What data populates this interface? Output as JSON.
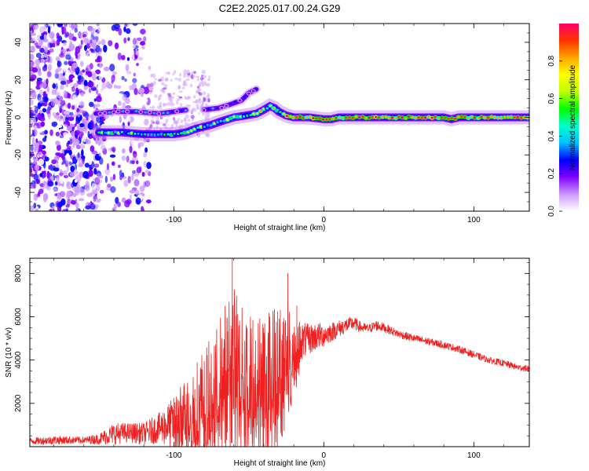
{
  "page": {
    "title": "C2E2.2025.017.00.24.G29"
  },
  "chart_data": [
    {
      "type": "heatmap",
      "title": "",
      "xlabel": "Height of straight line (km)",
      "ylabel": "Frequency (Hz)",
      "xlim": [
        -196,
        137
      ],
      "ylim": [
        -50,
        50
      ],
      "xticks": [
        -100,
        0,
        100
      ],
      "yticks": [
        -40,
        -20,
        0,
        20,
        40
      ],
      "colorbar": {
        "label": "Normalized spectral amplitude",
        "range": [
          0,
          1
        ],
        "ticks": [
          0.0,
          0.2,
          0.4,
          0.6,
          0.8
        ],
        "colors": [
          "#ffffff",
          "#cc99ff",
          "#7f00ff",
          "#0000ff",
          "#00bfff",
          "#00ffcc",
          "#00ff00",
          "#bfff00",
          "#ffff00",
          "#ffa500",
          "#ff3300",
          "#ff0066"
        ]
      },
      "ridges": [
        {
          "name": "",
          "x": [
            -152,
            -140,
            -125,
            -110,
            -100,
            -92
          ],
          "y": [
            2,
            3,
            3,
            2,
            3,
            4
          ],
          "amplitude": 0.35
        },
        {
          "name": "",
          "x": [
            -150,
            -135,
            -120,
            -110,
            -100,
            -92,
            -85,
            -75,
            -68,
            -60,
            -52,
            -45,
            -40,
            -36,
            -33,
            -30,
            -25,
            -20,
            -10,
            0,
            5,
            10,
            20,
            40,
            60,
            80,
            85,
            90,
            110,
            137
          ],
          "y": [
            -8,
            -8,
            -9,
            -9,
            -9,
            -8,
            -6,
            -4,
            -2,
            0,
            1,
            2,
            4,
            6,
            5,
            3,
            1,
            0,
            0,
            -1,
            -1,
            0,
            0,
            0,
            0,
            0,
            -1,
            0,
            0,
            0
          ],
          "amplitude": 0.75
        },
        {
          "name": "",
          "x": [
            -80,
            -70,
            -62,
            -55,
            -50,
            -45
          ],
          "y": [
            4,
            5,
            7,
            9,
            13,
            15
          ],
          "amplitude": 0.3
        }
      ]
    },
    {
      "type": "line",
      "title": "",
      "xlabel": "Height of straight line (km)",
      "ylabel": "SNR (10 * v/v)",
      "xlim": [
        -196,
        137
      ],
      "ylim": [
        0,
        8700
      ],
      "xticks": [
        -100,
        0,
        100
      ],
      "yticks": [
        2000,
        4000,
        6000,
        8000
      ],
      "color": "#ee2020",
      "series": [
        {
          "name": "",
          "x": [
            -196,
            -180,
            -160,
            -150,
            -140,
            -130,
            -120,
            -110,
            -100,
            -90,
            -80,
            -75,
            -70,
            -65,
            -60,
            -55,
            -50,
            -45,
            -40,
            -35,
            -30,
            -25,
            -20,
            -15,
            -10,
            -5,
            0,
            5,
            10,
            15,
            20,
            25,
            30,
            35,
            40,
            50,
            60,
            70,
            80,
            90,
            100,
            110,
            120,
            130,
            137
          ],
          "envelope": [
            250,
            300,
            300,
            350,
            600,
            650,
            600,
            850,
            1100,
            1800,
            2300,
            2600,
            3300,
            4000,
            4500,
            3700,
            3600,
            3600,
            3500,
            3600,
            3800,
            4300,
            4600,
            4900,
            4950,
            5100,
            5150,
            5300,
            5450,
            5600,
            5700,
            5500,
            5450,
            5600,
            5500,
            5200,
            5000,
            4850,
            4700,
            4500,
            4250,
            4000,
            3850,
            3650,
            3600
          ],
          "noise": [
            150,
            200,
            150,
            250,
            500,
            450,
            500,
            700,
            1200,
            1700,
            2300,
            2400,
            2600,
            2900,
            3000,
            2800,
            2700,
            2500,
            2900,
            3000,
            2800,
            2200,
            1400,
            900,
            700,
            650,
            550,
            450,
            400,
            350,
            300,
            250,
            200,
            250,
            200,
            180,
            180,
            170,
            160,
            160,
            160,
            150,
            150,
            150,
            150
          ]
        }
      ],
      "peaks": [
        {
          "x": -61,
          "y": 8700
        },
        {
          "x": -24,
          "y": 8000
        },
        {
          "x": -68,
          "y": 5000
        },
        {
          "x": -29,
          "y": 6300
        },
        {
          "x": -18,
          "y": 6500
        }
      ]
    }
  ]
}
